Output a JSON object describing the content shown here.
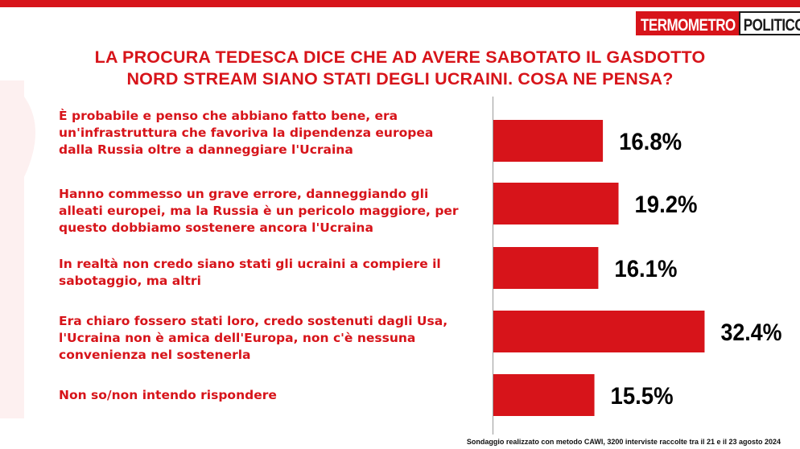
{
  "header": {
    "logo_left": "TERMOMETRO",
    "logo_right": "POLITICO",
    "accent_color": "#d7141a"
  },
  "chart_data": {
    "type": "bar",
    "orientation": "horizontal",
    "title": "LA PROCURA TEDESCA DICE CHE AD AVERE SABOTATO IL GASDOTTO NORD STREAM SIANO STATI DEGLI UCRAINI. COSA NE PENSA?",
    "title_lines": [
      "LA PROCURA TEDESCA DICE CHE AD AVERE SABOTATO IL GASDOTTO",
      "NORD STREAM SIANO STATI DEGLI UCRAINI. COSA NE PENSA?"
    ],
    "categories": [
      [
        "È probabile e penso che abbiano fatto bene, era",
        "un'infrastruttura che favoriva la dipendenza europea",
        "dalla Russia oltre a danneggiare l'Ucraina"
      ],
      [
        "Hanno commesso un grave errore, danneggiando gli",
        "alleati europei, ma la Russia è un pericolo maggiore, per",
        "questo dobbiamo sostenere ancora l'Ucraina"
      ],
      [
        "In realtà non credo siano stati gli ucraini a compiere il",
        "sabotaggio, ma altri"
      ],
      [
        "Era chiaro fossero stati loro, credo sostenuti dagli Usa,",
        "l'Ucraina non è amica dell'Europa, non c'è nessuna",
        "convenienza nel sostenerla"
      ],
      [
        "Non so/non intendo rispondere"
      ]
    ],
    "values": [
      16.8,
      19.2,
      16.1,
      32.4,
      15.5
    ],
    "value_labels": [
      "16.8%",
      "19.2%",
      "16.1%",
      "32.4%",
      "15.5%"
    ],
    "bar_color": "#d7141a",
    "xlim": [
      0,
      40
    ],
    "grid": false
  },
  "footer": {
    "note": "Sondaggio realizzato con metodo CAWI, 3200 interviste raccolte tra il 21 e il 23 agosto 2024"
  }
}
